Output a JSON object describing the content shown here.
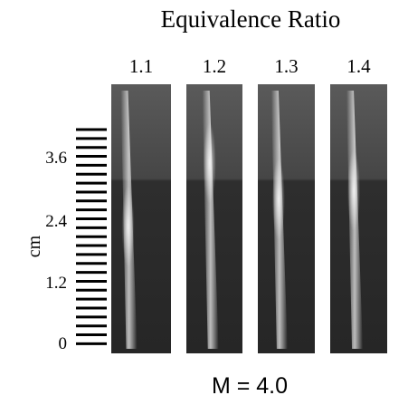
{
  "figure": {
    "title": "Equivalence Ratio",
    "columns": [
      "1.1",
      "1.2",
      "1.3",
      "1.4"
    ],
    "axis_label": "cm",
    "scale_labels": [
      "3.6",
      "2.4",
      "1.2",
      "0"
    ],
    "caption": "M = 4.0"
  }
}
